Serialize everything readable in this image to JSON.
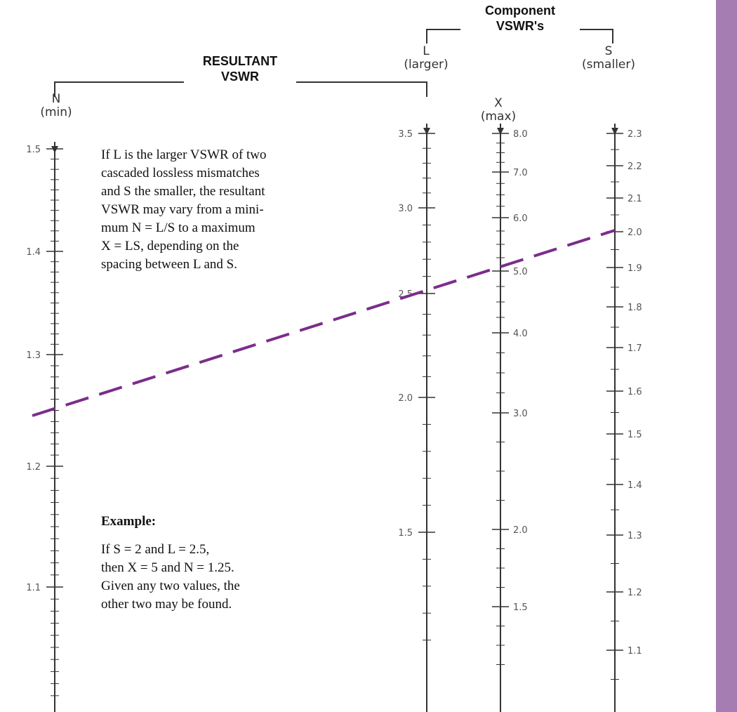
{
  "colors": {
    "accent": "#a57db3",
    "line": "#333333",
    "dash": "#7b2d8b"
  },
  "headers": {
    "resultant_line1": "RESULTANT",
    "resultant_line2": "VSWR",
    "component_line1": "Component",
    "component_line2": "VSWR's"
  },
  "scales": {
    "n": {
      "letter": "N",
      "sub": "(min)",
      "ticks": [
        "1.5",
        "1.4",
        "1.3",
        "1.2",
        "1.1"
      ]
    },
    "l": {
      "letter": "L",
      "sub": "(larger)",
      "ticks": [
        "3.5",
        "3.0",
        "2.5",
        "2.0",
        "1.5"
      ]
    },
    "x": {
      "letter": "X",
      "sub": "(max)",
      "ticks": [
        "8.0",
        "7.0",
        "6.0",
        "5.0",
        "4.0",
        "3.0",
        "2.0",
        "1.5"
      ]
    },
    "s": {
      "letter": "S",
      "sub": "(smaller)",
      "ticks": [
        "2.3",
        "2.2",
        "2.1",
        "2.0",
        "1.9",
        "1.8",
        "1.7",
        "1.6",
        "1.5",
        "1.4",
        "1.3",
        "1.2",
        "1.1"
      ]
    }
  },
  "description": {
    "line1": "If L is the larger VSWR of two",
    "line2": "cascaded lossless mismatches",
    "line3": "and S the smaller, the resultant",
    "line4": "VSWR may vary from a mini-",
    "line5": "mum N = L/S to a maximum",
    "line6": "X = LS, depending on the",
    "line7": "spacing between L and S."
  },
  "example": {
    "heading": "Example:",
    "line1": "If S = 2 and L = 2.5,",
    "line2": "then X = 5 and N = 1.25.",
    "line3": "Given any two values, the",
    "line4": "other two may be found."
  },
  "example_solution": {
    "S": 2.0,
    "L": 2.5,
    "X": 5.0,
    "N": 1.25
  }
}
